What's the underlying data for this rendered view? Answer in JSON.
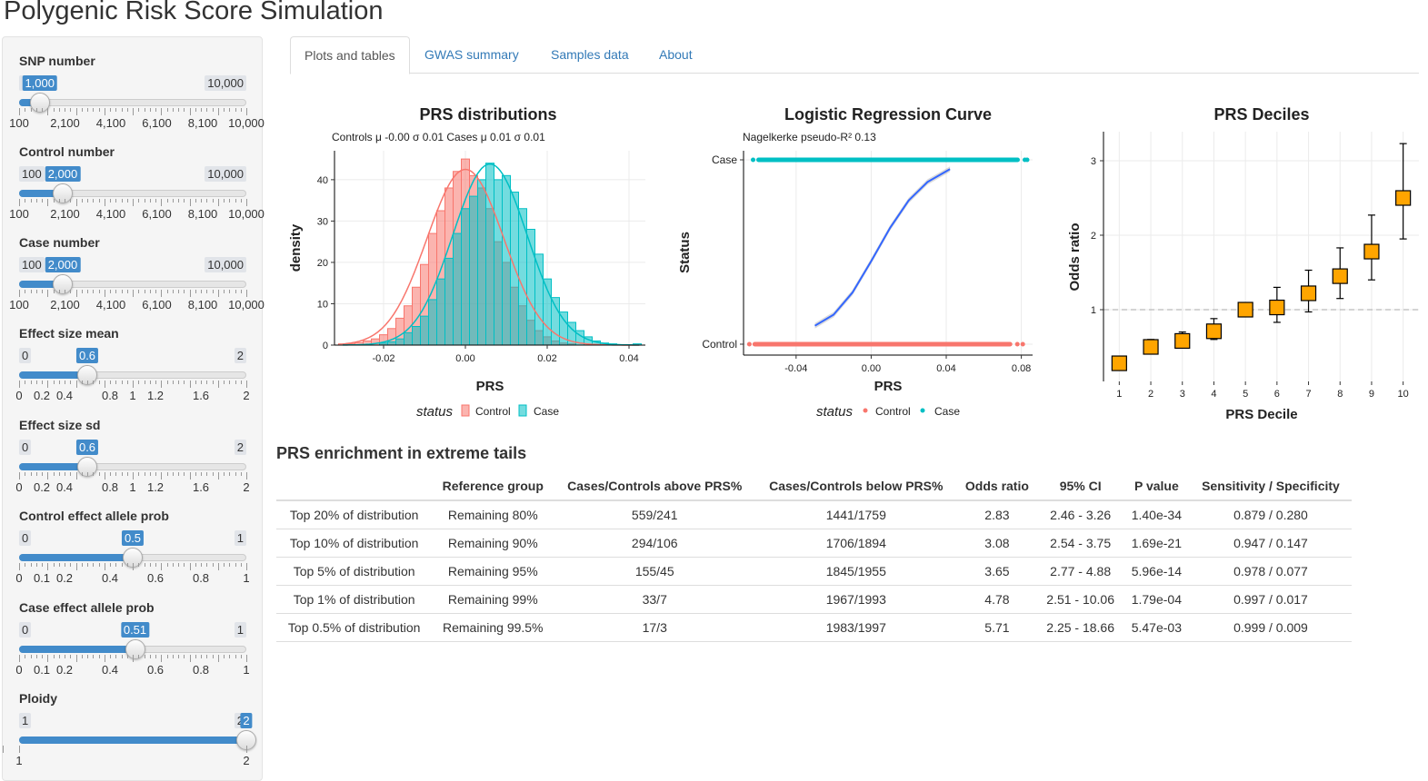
{
  "app": {
    "title": "Polygenic Risk Score Simulation"
  },
  "sidebar": {
    "sliders": [
      {
        "label": "SNP number",
        "min_label": "100",
        "max_label": "10,000",
        "value_label": "1,000",
        "value": 1000,
        "min": 100,
        "max": 10000,
        "ticks": [
          "100",
          "2,100",
          "4,100",
          "6,100",
          "8,100",
          "10,000"
        ]
      },
      {
        "label": "Control number",
        "min_label": "100",
        "max_label": "10,000",
        "value_label": "2,000",
        "value": 2000,
        "min": 100,
        "max": 10000,
        "ticks": [
          "100",
          "2,100",
          "4,100",
          "6,100",
          "8,100",
          "10,000"
        ]
      },
      {
        "label": "Case number",
        "min_label": "100",
        "max_label": "10,000",
        "value_label": "2,000",
        "value": 2000,
        "min": 100,
        "max": 10000,
        "ticks": [
          "100",
          "2,100",
          "4,100",
          "6,100",
          "8,100",
          "10,000"
        ]
      },
      {
        "label": "Effect size mean",
        "min_label": "0",
        "max_label": "2",
        "value_label": "0.6",
        "value": 0.6,
        "min": 0,
        "max": 2,
        "ticks": [
          "0",
          "0.2",
          "0.4",
          "0.8",
          "1",
          "1.2",
          "1.6",
          "2"
        ]
      },
      {
        "label": "Effect size sd",
        "min_label": "0",
        "max_label": "2",
        "value_label": "0.6",
        "value": 0.6,
        "min": 0,
        "max": 2,
        "ticks": [
          "0",
          "0.2",
          "0.4",
          "0.8",
          "1",
          "1.2",
          "1.6",
          "2"
        ]
      },
      {
        "label": "Control effect allele prob",
        "min_label": "0",
        "max_label": "1",
        "value_label": "0.5",
        "value": 0.5,
        "min": 0,
        "max": 1,
        "ticks": [
          "0",
          "0.1",
          "0.2",
          "0.4",
          "0.6",
          "0.8",
          "1"
        ]
      },
      {
        "label": "Case effect allele prob",
        "min_label": "0",
        "max_label": "1",
        "value_label": "0.51",
        "value": 0.51,
        "min": 0,
        "max": 1,
        "ticks": [
          "0",
          "0.1",
          "0.2",
          "0.4",
          "0.6",
          "0.8",
          "1"
        ]
      },
      {
        "label": "Ploidy",
        "min_label": "1",
        "max_label": "2",
        "value_label": "2",
        "value": 2,
        "min": 1,
        "max": 2,
        "ticks": [
          "1",
          "2"
        ]
      }
    ]
  },
  "tabs": [
    "Plots and tables",
    "GWAS summary",
    "Samples data",
    "About"
  ],
  "colors": {
    "control": "#f8766d",
    "case": "#00bfc4",
    "curve": "#3366ff",
    "decile_fill": "#ffa500",
    "link": "#337ab7",
    "slider": "#428bca"
  },
  "chart_data": [
    {
      "type": "bar",
      "title": "PRS distributions",
      "subtitle": "Controls μ -0.00 σ 0.01 Cases μ 0.01 σ 0.01",
      "xlabel": "PRS",
      "ylabel": "density",
      "xlim": [
        -0.032,
        0.044
      ],
      "ylim": [
        0,
        47
      ],
      "xticks": [
        "-0.02",
        "0.00",
        "0.02",
        "0.04"
      ],
      "yticks": [
        "0",
        "10",
        "20",
        "30",
        "40"
      ],
      "legend_title": "status",
      "legend": [
        "Control",
        "Case"
      ],
      "bin_width": 0.002,
      "series": [
        {
          "name": "Control",
          "x": [
            -0.03,
            -0.028,
            -0.026,
            -0.024,
            -0.022,
            -0.02,
            -0.018,
            -0.016,
            -0.014,
            -0.012,
            -0.01,
            -0.008,
            -0.006,
            -0.004,
            -0.002,
            0.0,
            0.002,
            0.004,
            0.006,
            0.008,
            0.01,
            0.012,
            0.014,
            0.016,
            0.018,
            0.02,
            0.022,
            0.024,
            0.026
          ],
          "values": [
            0.3,
            0.3,
            0.6,
            1,
            1.5,
            2.5,
            4,
            6.5,
            9.5,
            14,
            19.5,
            27,
            32.5,
            38,
            42,
            45,
            41,
            38,
            33,
            25,
            20,
            14,
            9.5,
            6,
            3.5,
            2,
            1,
            0.5,
            0.3
          ]
        },
        {
          "name": "Case",
          "x": [
            -0.02,
            -0.018,
            -0.016,
            -0.014,
            -0.012,
            -0.01,
            -0.008,
            -0.006,
            -0.004,
            -0.002,
            0.0,
            0.002,
            0.004,
            0.006,
            0.008,
            0.01,
            0.012,
            0.014,
            0.016,
            0.018,
            0.02,
            0.022,
            0.024,
            0.026,
            0.028,
            0.03,
            0.032,
            0.034,
            0.036,
            0.042
          ],
          "values": [
            0.5,
            0.8,
            1.5,
            3,
            4.5,
            7,
            11,
            16,
            21,
            27,
            33,
            36,
            40,
            44,
            40,
            41,
            37,
            33,
            28,
            22,
            16,
            11.5,
            8,
            5.5,
            3.5,
            2,
            1,
            0.5,
            0.3,
            0.3
          ]
        }
      ],
      "density_curves": [
        {
          "name": "Control",
          "mean": 0.0,
          "sd": 0.0094,
          "peak": 42.5
        },
        {
          "name": "Case",
          "mean": 0.006,
          "sd": 0.0091,
          "peak": 43.8
        }
      ]
    },
    {
      "type": "scatter",
      "title": "Logistic Regression Curve",
      "subtitle": "Nagelkerke pseudo-R² 0.13",
      "xlabel": "PRS",
      "ylabel": "Status",
      "xlim": [
        -0.068,
        0.086
      ],
      "xticks": [
        "-0.04",
        "0.00",
        "0.04",
        "0.08"
      ],
      "yticks": [
        "Control",
        "Case"
      ],
      "legend_title": "status",
      "legend": [
        "Control",
        "Case"
      ],
      "series": [
        {
          "name": "Control",
          "range": [
            -0.062,
            0.074
          ],
          "y": 0
        },
        {
          "name": "Case",
          "range": [
            -0.06,
            0.078
          ],
          "y": 1
        }
      ],
      "fit_curve": {
        "x": [
          -0.03,
          -0.02,
          -0.01,
          0.0,
          0.01,
          0.02,
          0.03,
          0.042
        ],
        "y": [
          0.1,
          0.16,
          0.28,
          0.45,
          0.63,
          0.78,
          0.88,
          0.95
        ]
      }
    },
    {
      "type": "scatter",
      "title": "PRS Deciles",
      "xlabel": "PRS Decile",
      "ylabel": "Odds ratio",
      "xlim": [
        0.5,
        10.5
      ],
      "yticks": [
        "1",
        "2",
        "3"
      ],
      "categories": [
        "1",
        "2",
        "3",
        "4",
        "5",
        "6",
        "7",
        "8",
        "9",
        "10"
      ],
      "values": [
        0.28,
        0.5,
        0.58,
        0.71,
        1.0,
        1.03,
        1.22,
        1.45,
        1.78,
        2.5
      ],
      "ci_low": [
        0.26,
        0.44,
        0.52,
        0.6,
        1.0,
        0.83,
        0.97,
        1.15,
        1.4,
        1.95
      ],
      "ci_high": [
        0.3,
        0.6,
        0.7,
        0.88,
        1.0,
        1.3,
        1.53,
        1.83,
        2.27,
        3.23
      ],
      "reference_line": 1
    }
  ],
  "enrichment": {
    "title": "PRS enrichment in extreme tails",
    "headers": [
      "",
      "Reference group",
      "Cases/Controls above PRS%",
      "Cases/Controls below PRS%",
      "Odds ratio",
      "95% CI",
      "P value",
      "Sensitivity / Specificity"
    ],
    "rows": [
      [
        "Top 20% of distribution",
        "Remaining 80%",
        "559/241",
        "1441/1759",
        "2.83",
        "2.46 - 3.26",
        "1.40e-34",
        "0.879 / 0.280"
      ],
      [
        "Top 10% of distribution",
        "Remaining 90%",
        "294/106",
        "1706/1894",
        "3.08",
        "2.54 - 3.75",
        "1.69e-21",
        "0.947 / 0.147"
      ],
      [
        "Top 5% of distribution",
        "Remaining 95%",
        "155/45",
        "1845/1955",
        "3.65",
        "2.77 - 4.88",
        "5.96e-14",
        "0.978 / 0.077"
      ],
      [
        "Top 1% of distribution",
        "Remaining 99%",
        "33/7",
        "1967/1993",
        "4.78",
        "2.51 - 10.06",
        "1.79e-04",
        "0.997 / 0.017"
      ],
      [
        "Top 0.5% of distribution",
        "Remaining 99.5%",
        "17/3",
        "1983/1997",
        "5.71",
        "2.25 - 18.66",
        "5.47e-03",
        "0.999 / 0.009"
      ]
    ]
  }
}
